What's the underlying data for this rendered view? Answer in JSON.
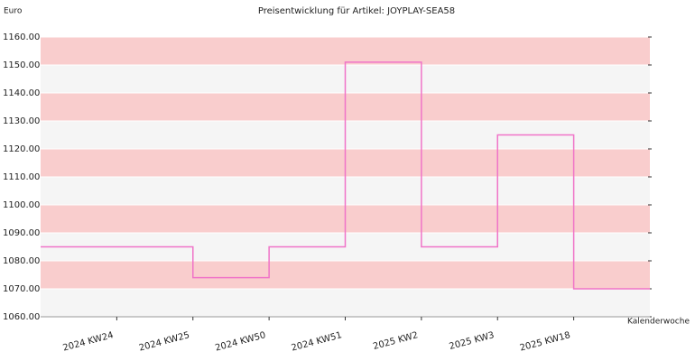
{
  "chart_data": {
    "type": "step",
    "title": "Preisentwicklung für Artikel: JOYPLAY-SEA58",
    "y_label": "Euro",
    "x_label": "Kalenderwoche",
    "categories": [
      "2024 KW24",
      "2024 KW25",
      "2024 KW50",
      "2024 KW51",
      "2025 KW2",
      "2025 KW3",
      "2025 KW18"
    ],
    "values": [
      1085,
      1074,
      1085,
      1151,
      1085,
      1125,
      1070
    ],
    "color": "#f074c8",
    "band_colors": [
      "#f5f5f5",
      "#f9cdcd"
    ],
    "ylim": [
      1060,
      1160
    ],
    "yticks": [
      {
        "value": 1060,
        "label": "1060.00"
      },
      {
        "value": 1070,
        "label": "1070.00"
      },
      {
        "value": 1080,
        "label": "1080.00"
      },
      {
        "value": 1090,
        "label": "1090.00"
      },
      {
        "value": 1100,
        "label": "1100.00"
      },
      {
        "value": 1110,
        "label": "1110.00"
      },
      {
        "value": 1120,
        "label": "1120.00"
      },
      {
        "value": 1130,
        "label": "1130.00"
      },
      {
        "value": 1140,
        "label": "1140.00"
      },
      {
        "value": 1150,
        "label": "1150.00"
      },
      {
        "value": 1160,
        "label": "1160.00"
      }
    ]
  }
}
